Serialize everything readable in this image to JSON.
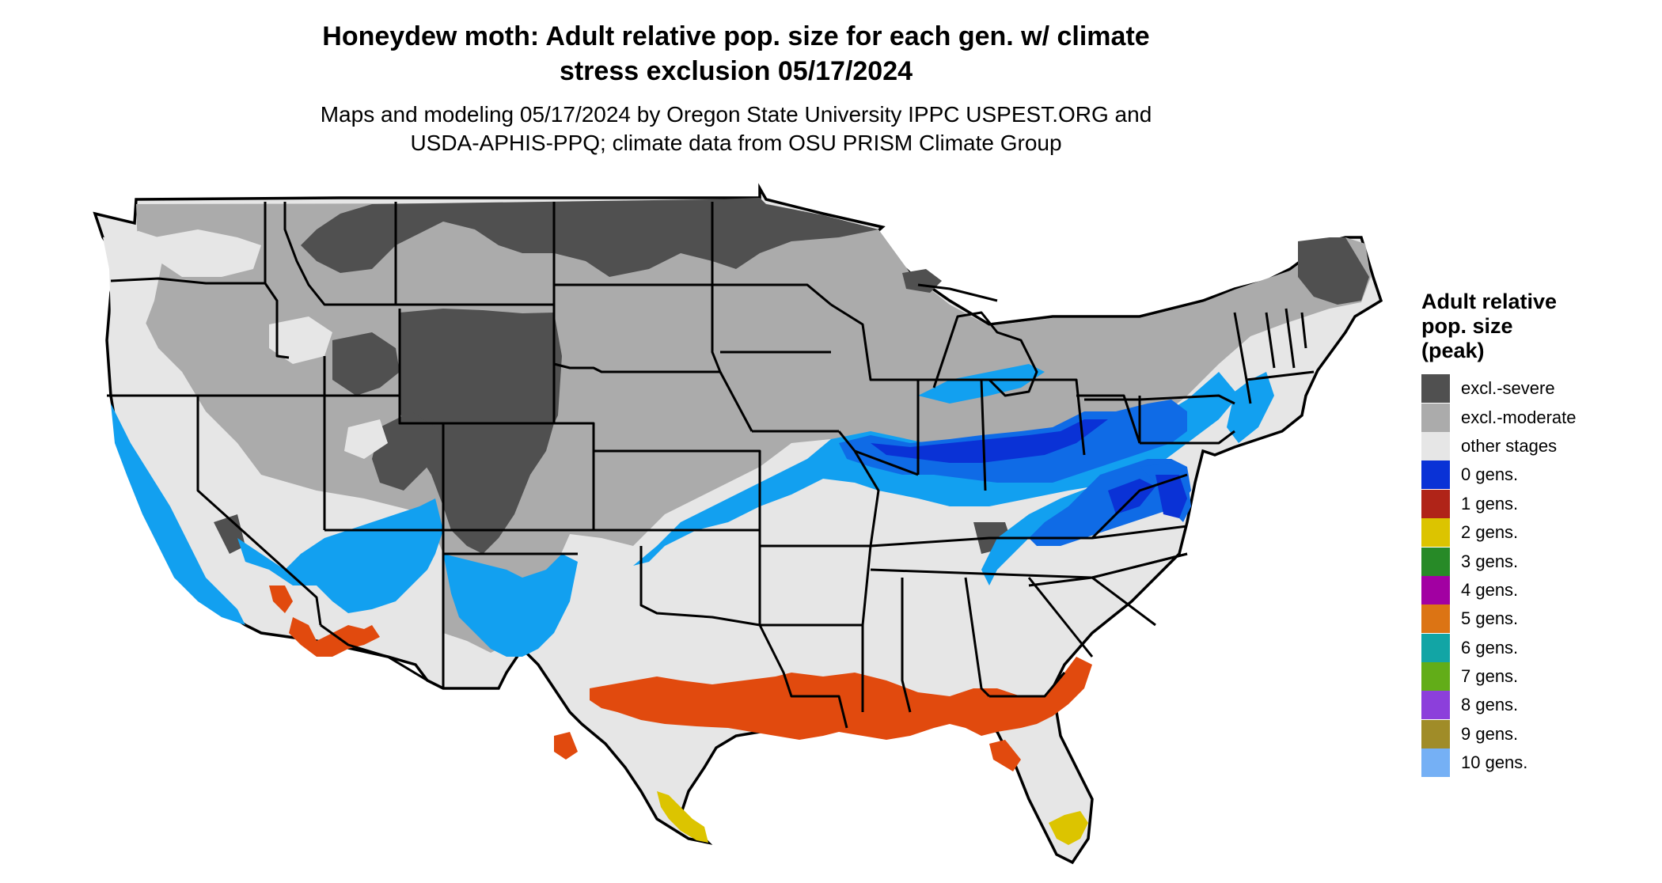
{
  "title": {
    "line1": "Honeydew moth: Adult relative pop. size for each gen. w/ climate",
    "line2": "stress exclusion 05/17/2024"
  },
  "subtitle": {
    "line1": "Maps and modeling 05/17/2024 by Oregon State University IPPC USPEST.ORG and",
    "line2": "USDA-APHIS-PPQ; climate data from OSU PRISM Climate Group"
  },
  "legend": {
    "title_lines": [
      "Adult relative",
      "pop. size",
      "(peak)"
    ],
    "items": [
      {
        "label": "excl.-severe",
        "color": "#505050"
      },
      {
        "label": "excl.-moderate",
        "color": "#ababab"
      },
      {
        "label": "other stages",
        "color": "#e6e6e6"
      },
      {
        "label": "0 gens.",
        "color": "#0a32d6"
      },
      {
        "label": "1 gens.",
        "color": "#b02418"
      },
      {
        "label": "2 gens.",
        "color": "#dcc400"
      },
      {
        "label": "3 gens.",
        "color": "#278a27"
      },
      {
        "label": "4 gens.",
        "color": "#a200a2"
      },
      {
        "label": "5 gens.",
        "color": "#dc7414"
      },
      {
        "label": "6 gens.",
        "color": "#12a5a5"
      },
      {
        "label": "7 gens.",
        "color": "#62ad18"
      },
      {
        "label": "8 gens.",
        "color": "#8c3fdb"
      },
      {
        "label": "9 gens.",
        "color": "#a08c28"
      },
      {
        "label": "10 gens.",
        "color": "#75b0f5"
      }
    ]
  },
  "map_colors": {
    "light_blue": "#12a0f0",
    "mid_blue": "#0f6be6",
    "red_orange": "#e14a0e",
    "state_border": "#000000"
  }
}
